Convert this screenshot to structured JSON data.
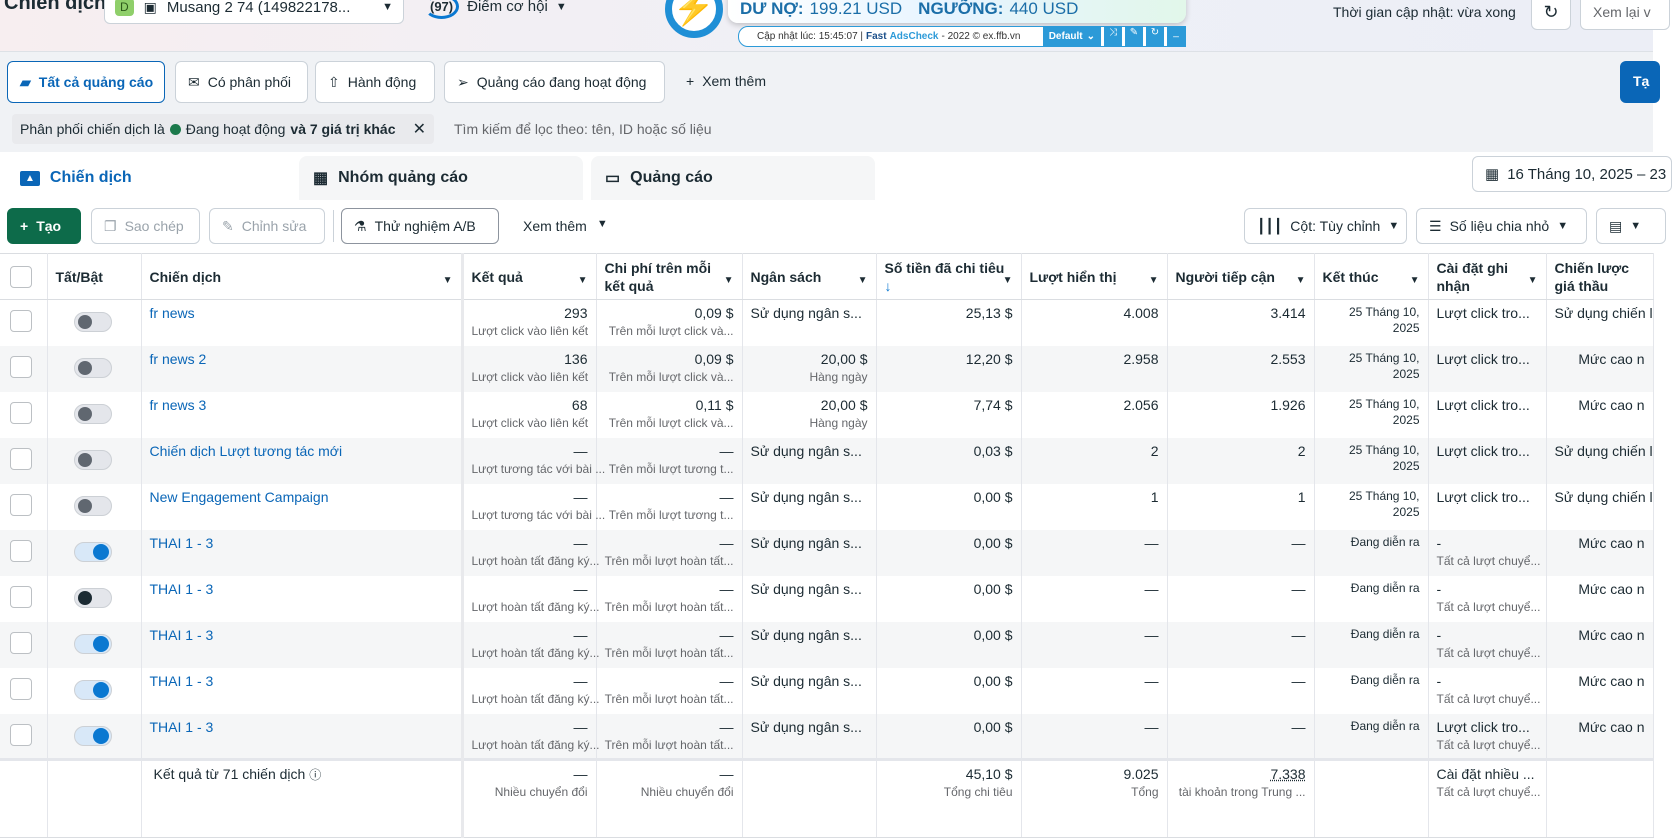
{
  "header": {
    "title": "Chiến dịch",
    "account_badge": "D",
    "account": "Musang 2 74 (149822178...",
    "score": "(97)",
    "score_label": "Điểm cơ hội",
    "update_time": "Thời gian cập nhật: vừa xong",
    "review_button": "Xem lại v"
  },
  "extension": {
    "debt_label": "DƯ NỢ:",
    "debt": "199.21 USD",
    "threshold_label": "NGƯỠNG:",
    "threshold": "440 USD",
    "updated": "Cập nhật lúc: 15:45:07 |",
    "brand1": "Fast",
    "brand2": "AdsCheck",
    "copyright": "- 2022 © ex.ffb.vn",
    "preset": "Default"
  },
  "views": [
    "Tất cả quảng cáo",
    "Có phân phối",
    "Hành động",
    "Quảng cáo đang hoạt động"
  ],
  "views_more": "Xem thêm",
  "create_top": "Tạ",
  "filter": {
    "prefix": "Phân phối chiến dịch là",
    "value": "Đang hoạt động",
    "more": "và 7 giá trị khác",
    "search_placeholder": "Tìm kiếm để lọc theo: tên, ID hoặc số liệu"
  },
  "tabs": [
    "Chiến dịch",
    "Nhóm quảng cáo",
    "Quảng cáo"
  ],
  "date_range": "16 Tháng 10, 2025 – 23",
  "toolbar": {
    "create": "Tạo",
    "duplicate": "Sao chép",
    "edit": "Chỉnh sửa",
    "ab_test": "Thử nghiệm A/B",
    "more": "Xem thêm",
    "columns": "Cột: Tùy chỉnh",
    "breakdown": "Số liệu chia nhỏ"
  },
  "columns": [
    "Tất/Bật",
    "Chiến dịch",
    "Kết quả",
    "Chi phí trên mỗi kết quả",
    "Ngân sách",
    "Số tiền đã chi tiêu",
    "Lượt hiển thị",
    "Người tiếp cận",
    "Kết thúc",
    "Cài đặt ghi nhận",
    "Chiến lược giá thầu"
  ],
  "sort_indicator": "↓",
  "rows": [
    {
      "on": "off",
      "name": "fr news",
      "res": "293",
      "res_sub": "Lượt click vào liên kết",
      "cpr": "0,09 $",
      "cpr_sub": "Trên mỗi lượt click và...",
      "budget": "Sử dụng ngân s...",
      "budget_sub": "",
      "spent": "25,13 $",
      "impr": "4.008",
      "reach": "3.414",
      "end": "25 Tháng 10, 2025",
      "attr": "Lượt click tro...",
      "attr_sub": "",
      "bid": "Sử dụng chiến l"
    },
    {
      "on": "off",
      "name": "fr news 2",
      "res": "136",
      "res_sub": "Lượt click vào liên kết",
      "cpr": "0,09 $",
      "cpr_sub": "Trên mỗi lượt click và...",
      "budget": "20,00 $",
      "budget_sub": "Hàng ngày",
      "spent": "12,20 $",
      "impr": "2.958",
      "reach": "2.553",
      "end": "25 Tháng 10, 2025",
      "attr": "Lượt click tro...",
      "attr_sub": "",
      "bid": "Mức cao n"
    },
    {
      "on": "off",
      "name": "fr news 3",
      "res": "68",
      "res_sub": "Lượt click vào liên kết",
      "cpr": "0,11 $",
      "cpr_sub": "Trên mỗi lượt click và...",
      "budget": "20,00 $",
      "budget_sub": "Hàng ngày",
      "spent": "7,74 $",
      "impr": "2.056",
      "reach": "1.926",
      "end": "25 Tháng 10, 2025",
      "attr": "Lượt click tro...",
      "attr_sub": "",
      "bid": "Mức cao n"
    },
    {
      "on": "off",
      "name": "Chiến dịch Lượt tương tác mới",
      "res": "—",
      "res_sub": "Lượt tương tác với bài ...",
      "cpr": "—",
      "cpr_sub": "Trên mỗi lượt tương t...",
      "budget": "Sử dụng ngân s...",
      "budget_sub": "",
      "spent": "0,03 $",
      "impr": "2",
      "reach": "2",
      "end": "25 Tháng 10, 2025",
      "attr": "Lượt click tro...",
      "attr_sub": "",
      "bid": "Sử dụng chiến l"
    },
    {
      "on": "off",
      "name": "New Engagement Campaign",
      "res": "—",
      "res_sub": "Lượt tương tác với bài ...",
      "cpr": "—",
      "cpr_sub": "Trên mỗi lượt tương t...",
      "budget": "Sử dụng ngân s...",
      "budget_sub": "",
      "spent": "0,00 $",
      "impr": "1",
      "reach": "1",
      "end": "25 Tháng 10, 2025",
      "attr": "Lượt click tro...",
      "attr_sub": "",
      "bid": "Sử dụng chiến l"
    },
    {
      "on": "on",
      "name": "THAI 1 - 3",
      "res": "—",
      "res_sub": "Lượt hoàn tất đăng ký...",
      "cpr": "—",
      "cpr_sub": "Trên mỗi lượt hoàn tất...",
      "budget": "Sử dụng ngân s...",
      "budget_sub": "",
      "spent": "0,00 $",
      "impr": "—",
      "reach": "—",
      "end": "Đang diễn ra",
      "attr": "-",
      "attr_sub": "Tất cả lượt chuyể...",
      "bid": "Mức cao n"
    },
    {
      "on": "dark",
      "name": "THAI 1 - 3",
      "res": "—",
      "res_sub": "Lượt hoàn tất đăng ký...",
      "cpr": "—",
      "cpr_sub": "Trên mỗi lượt hoàn tất...",
      "budget": "Sử dụng ngân s...",
      "budget_sub": "",
      "spent": "0,00 $",
      "impr": "—",
      "reach": "—",
      "end": "Đang diễn ra",
      "attr": "-",
      "attr_sub": "Tất cả lượt chuyể...",
      "bid": "Mức cao n"
    },
    {
      "on": "on",
      "name": "THAI 1 - 3",
      "res": "—",
      "res_sub": "Lượt hoàn tất đăng ký...",
      "cpr": "—",
      "cpr_sub": "Trên mỗi lượt hoàn tất...",
      "budget": "Sử dụng ngân s...",
      "budget_sub": "",
      "spent": "0,00 $",
      "impr": "—",
      "reach": "—",
      "end": "Đang diễn ra",
      "attr": "-",
      "attr_sub": "Tất cả lượt chuyể...",
      "bid": "Mức cao n"
    },
    {
      "on": "on",
      "name": "THAI 1 - 3",
      "res": "—",
      "res_sub": "Lượt hoàn tất đăng ký...",
      "cpr": "—",
      "cpr_sub": "Trên mỗi lượt hoàn tất...",
      "budget": "Sử dụng ngân s...",
      "budget_sub": "",
      "spent": "0,00 $",
      "impr": "—",
      "reach": "—",
      "end": "Đang diễn ra",
      "attr": "-",
      "attr_sub": "Tất cả lượt chuyể...",
      "bid": "Mức cao n"
    },
    {
      "on": "on",
      "name": "THAI 1 - 3",
      "res": "—",
      "res_sub": "Lượt hoàn tất đăng ký...",
      "cpr": "—",
      "cpr_sub": "Trên mỗi lượt hoàn tất...",
      "budget": "Sử dụng ngân s...",
      "budget_sub": "",
      "spent": "0,00 $",
      "impr": "—",
      "reach": "—",
      "end": "Đang diễn ra",
      "attr": "Lượt click tro...",
      "attr_sub": "Tất cả lượt chuyể...",
      "bid": "Mức cao n"
    }
  ],
  "footer": {
    "label": "Kết quả từ 71 chiến dịch",
    "res": "—",
    "res_sub": "Nhiều chuyển đổi",
    "cpr": "—",
    "cpr_sub": "Nhiều chuyển đổi",
    "spent": "45,10 $",
    "spent_sub": "Tổng chi tiêu",
    "impr": "9.025",
    "impr_sub": "Tổng",
    "reach": "7.338",
    "reach_sub": "tài khoản trong Trung ...",
    "attr": "Cài đặt nhiều ...",
    "attr_sub": "Tất cả lượt chuyể..."
  }
}
